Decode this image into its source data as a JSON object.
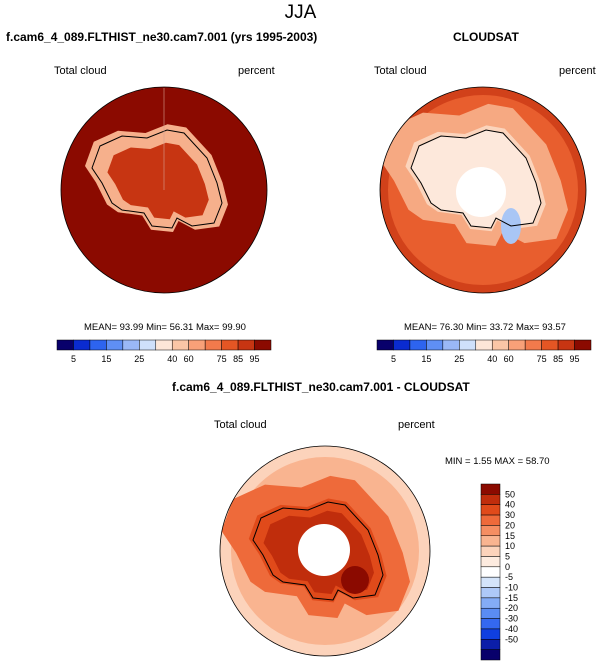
{
  "page": {
    "season_title": "JJA"
  },
  "colors": {
    "land_outline": "#000000",
    "pole_hole": "#ffffff",
    "ocean_model": "#8b0a00",
    "abs_levels": [
      "#08006b",
      "#0a2bd0",
      "#2d64ef",
      "#5f8ff5",
      "#9ab8f7",
      "#cfe0fb",
      "#fde6d8",
      "#fbc6a6",
      "#f8a078",
      "#f27a4c",
      "#e55624",
      "#c73512",
      "#8b0a00"
    ],
    "diff_levels": [
      "#08006b",
      "#0b1ea8",
      "#0f3fe0",
      "#3468f0",
      "#5a8cf3",
      "#84acf6",
      "#aec9f8",
      "#d4e4fa",
      "#ffffff",
      "#fdebdf",
      "#fcd3bb",
      "#f9b490",
      "#f58e62",
      "#ee6a3a",
      "#e04a1a",
      "#c02d0c",
      "#8b0a00"
    ]
  },
  "panels": [
    {
      "title": "f.cam6_4_089.FLTHIST_ne30.cam7.001 (yrs 1995-2003)",
      "variable_label": "Total cloud",
      "units_label": "percent",
      "stats": {
        "mean_label": "MEAN=",
        "mean": "93.99",
        "min_label": "Min=",
        "min": "56.31",
        "max_label": "Max=",
        "max": "99.90"
      },
      "colorbar_ticks": [
        "5",
        "15",
        "25",
        "40",
        "60",
        "75",
        "85",
        "95"
      ]
    },
    {
      "title": "CLOUDSAT",
      "variable_label": "Total cloud",
      "units_label": "percent",
      "stats": {
        "mean_label": "MEAN=",
        "mean": "76.30",
        "min_label": "Min=",
        "min": "33.72",
        "max_label": "Max=",
        "max": "93.57"
      },
      "colorbar_ticks": [
        "5",
        "15",
        "25",
        "40",
        "60",
        "75",
        "85",
        "95"
      ]
    }
  ],
  "diff_panel": {
    "title": "f.cam6_4_089.FLTHIST_ne30.cam7.001 - CLOUDSAT",
    "variable_label": "Total cloud",
    "units_label": "percent",
    "range_text": "MIN =  1.55 MAX = 58.70",
    "colorbar_ticks": [
      "50",
      "40",
      "30",
      "20",
      "15",
      "10",
      "5",
      "0",
      "-5",
      "-10",
      "-15",
      "-20",
      "-30",
      "-40",
      "-50"
    ]
  },
  "chart_data": [
    {
      "type": "heatmap",
      "projection": "south-polar-stereographic",
      "title": "f.cam6_4_089.FLTHIST_ne30.cam7.001 (yrs 1995-2003)",
      "variable": "Total cloud",
      "units": "percent",
      "mean": 93.99,
      "min": 56.31,
      "max": 99.9,
      "contour_levels": [
        5,
        10,
        15,
        20,
        25,
        30,
        40,
        50,
        60,
        70,
        75,
        80,
        85,
        90,
        95
      ],
      "colorbar_labels": [
        5,
        15,
        25,
        40,
        60,
        75,
        85,
        95
      ],
      "field_description": "near-uniform ~95% over ocean; lower values (60-85%) over East Antarctic plateau"
    },
    {
      "type": "heatmap",
      "projection": "south-polar-stereographic",
      "title": "CLOUDSAT",
      "variable": "Total cloud",
      "units": "percent",
      "mean": 76.3,
      "min": 33.72,
      "max": 93.57,
      "contour_levels": [
        5,
        10,
        15,
        20,
        25,
        30,
        40,
        50,
        60,
        70,
        75,
        80,
        85,
        90,
        95
      ],
      "colorbar_labels": [
        5,
        15,
        25,
        40,
        60,
        75,
        85,
        95
      ],
      "field_description": "75-95% over Southern Ocean; 40-60% over Antarctica; no data poleward of ~82S"
    },
    {
      "type": "heatmap",
      "projection": "south-polar-stereographic",
      "title": "f.cam6_4_089.FLTHIST_ne30.cam7.001 - CLOUDSAT",
      "variable": "Total cloud",
      "units": "percent",
      "min": 1.55,
      "max": 58.7,
      "contour_levels": [
        -50,
        -40,
        -30,
        -20,
        -15,
        -10,
        -5,
        0,
        5,
        10,
        15,
        20,
        30,
        40,
        50
      ],
      "field_description": "positive everywhere: 5-20% over ocean, 30-50%+ over Antarctic continent"
    }
  ]
}
